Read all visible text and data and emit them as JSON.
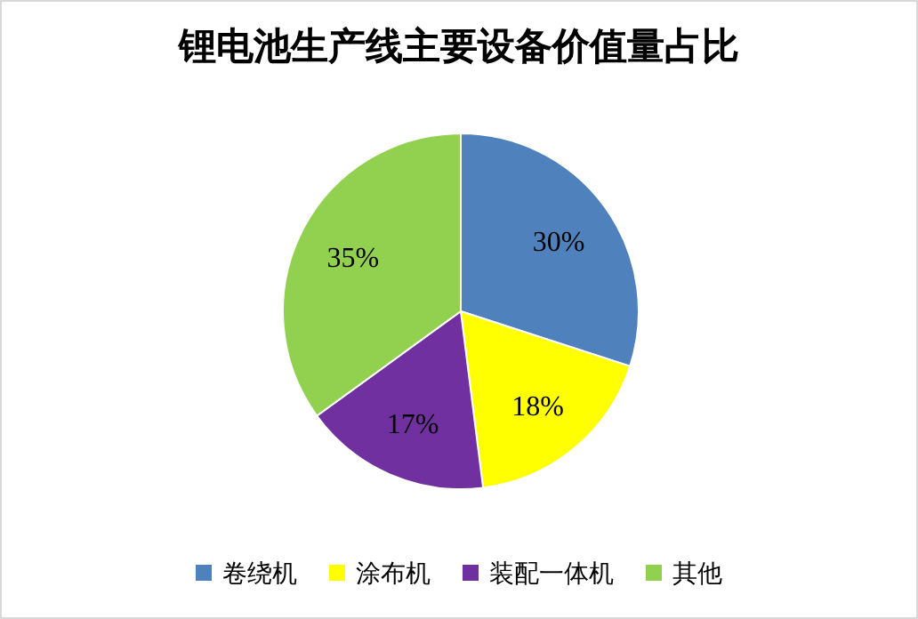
{
  "chart_data": {
    "type": "pie",
    "title": "锂电池生产线主要设备价值量占比",
    "categories": [
      "卷绕机",
      "涂布机",
      "装配一体机",
      "其他"
    ],
    "values": [
      30,
      18,
      17,
      35
    ],
    "colors": [
      "#4f81bd",
      "#ffff00",
      "#7030a0",
      "#92d050"
    ],
    "value_labels": [
      "30%",
      "18%",
      "17%",
      "35%"
    ],
    "legend": "bottom"
  }
}
